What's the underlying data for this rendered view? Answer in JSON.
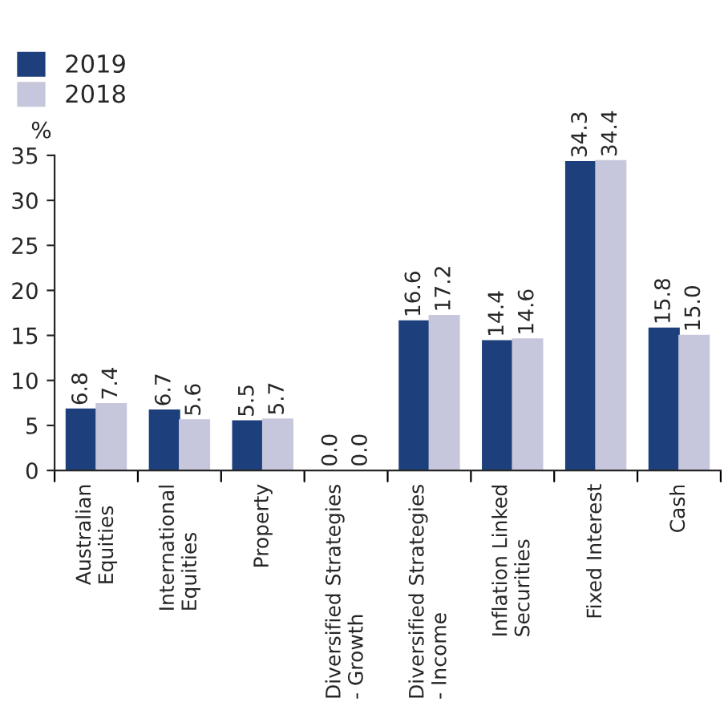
{
  "chart_data": {
    "type": "bar",
    "ylabel": "%",
    "categories": [
      "Australian\nEquities",
      "International\nEquities",
      "Property",
      "Diversified Strategies\n- Growth",
      "Diversified Strategies\n- Income",
      "Inflation Linked\nSecurities",
      "Fixed Interest",
      "Cash"
    ],
    "series": [
      {
        "name": "2019",
        "color": "#1d3f7c",
        "values": [
          6.8,
          6.7,
          5.5,
          0.0,
          16.6,
          14.4,
          34.3,
          15.8
        ],
        "value_labels": [
          "6.8",
          "6.7",
          "5.5",
          "0.0",
          "16.6",
          "14.4",
          "34.3",
          "15.8"
        ]
      },
      {
        "name": "2018",
        "color": "#c6c7dc",
        "values": [
          7.4,
          5.6,
          5.7,
          0.0,
          17.2,
          14.6,
          34.4,
          15.0
        ],
        "value_labels": [
          "7.4",
          "5.6",
          "5.7",
          "0.0",
          "17.2",
          "14.6",
          "34.4",
          "15.0"
        ]
      }
    ],
    "ylim": [
      0,
      35
    ],
    "yticks": [
      0,
      5,
      10,
      15,
      20,
      25,
      30,
      35
    ],
    "grid": false,
    "legend": "top left"
  }
}
